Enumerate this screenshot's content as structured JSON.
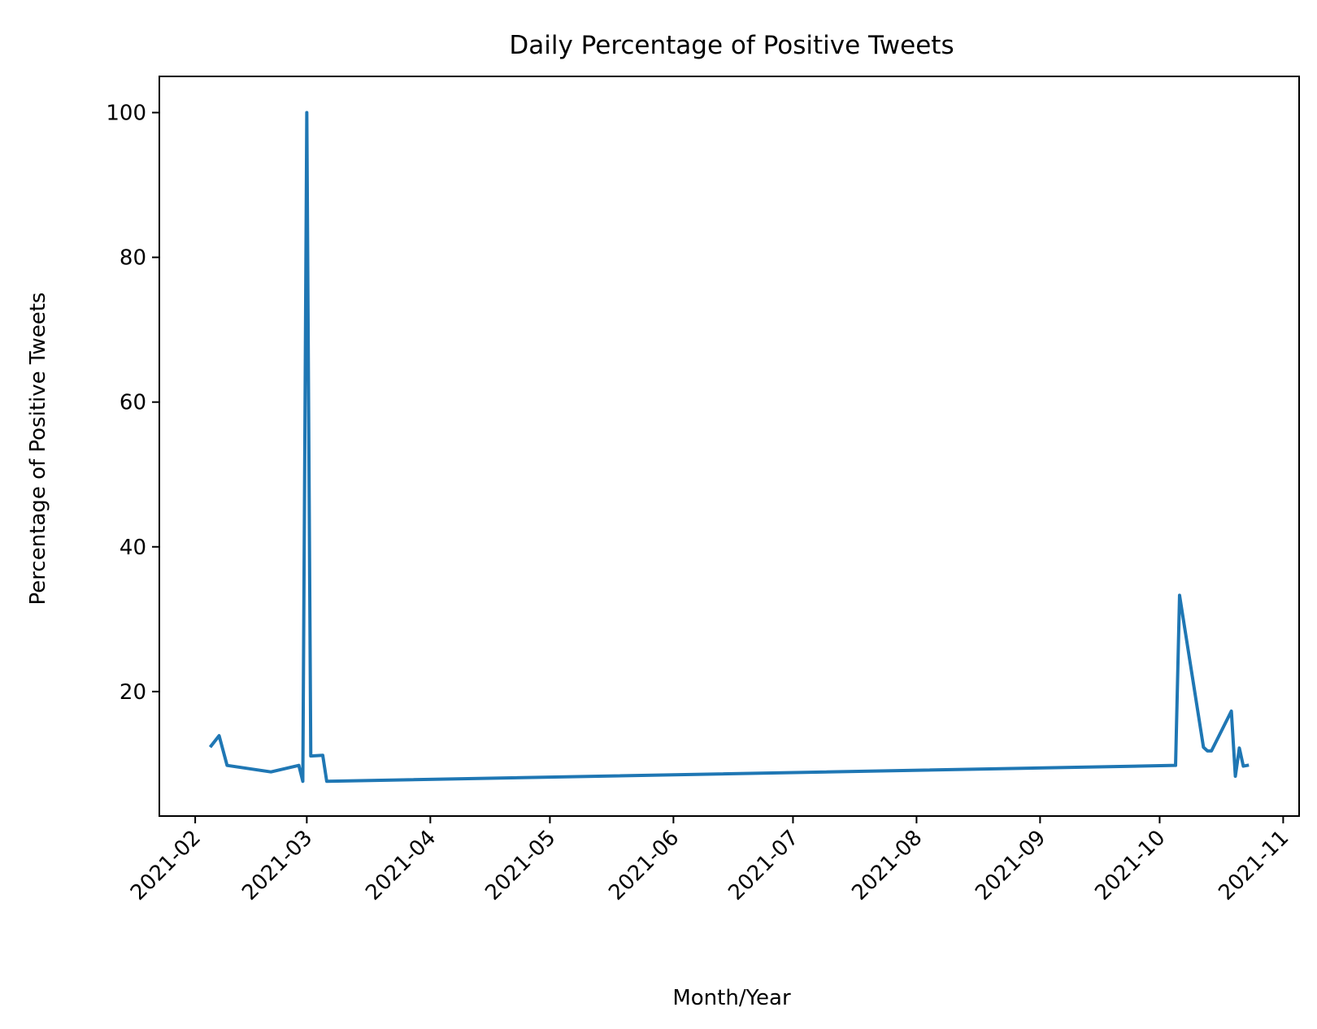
{
  "chart_data": {
    "type": "line",
    "title": "Daily Percentage of Positive Tweets",
    "xlabel": "Month/Year",
    "ylabel": "Percentage of Positive Tweets",
    "xlim": [
      "2021-01-23",
      "2021-11-05"
    ],
    "ylim": [
      2.8,
      105
    ],
    "x_ticks": [
      "2021-02-01",
      "2021-03-01",
      "2021-04-01",
      "2021-05-01",
      "2021-06-01",
      "2021-07-01",
      "2021-08-01",
      "2021-09-01",
      "2021-10-01",
      "2021-11-01"
    ],
    "x_tick_labels": [
      "2021-02",
      "2021-03",
      "2021-04",
      "2021-05",
      "2021-06",
      "2021-07",
      "2021-08",
      "2021-09",
      "2021-10",
      "2021-11"
    ],
    "y_ticks": [
      20,
      40,
      60,
      80,
      100
    ],
    "y_tick_labels": [
      "20",
      "40",
      "60",
      "80",
      "100"
    ],
    "grid": false,
    "series": [
      {
        "color": "#1f77b4",
        "x": [
          "2021-02-05",
          "2021-02-07",
          "2021-02-09",
          "2021-02-20",
          "2021-02-27",
          "2021-02-28",
          "2021-03-01",
          "2021-03-02",
          "2021-03-05",
          "2021-03-06",
          "2021-10-05",
          "2021-10-06",
          "2021-10-12",
          "2021-10-13",
          "2021-10-14",
          "2021-10-19",
          "2021-10-20",
          "2021-10-21",
          "2021-10-22",
          "2021-10-23"
        ],
        "y": [
          12.5,
          13.9,
          9.8,
          8.9,
          9.8,
          7.6,
          100,
          11.1,
          11.2,
          7.6,
          9.8,
          33.3,
          12.3,
          11.8,
          11.8,
          17.3,
          8.3,
          12.2,
          9.7,
          9.8
        ]
      }
    ]
  }
}
